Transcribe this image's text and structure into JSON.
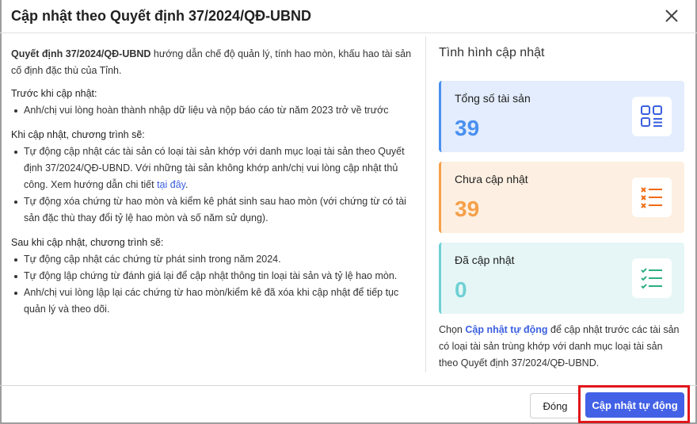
{
  "dialog": {
    "title": "Cập nhật theo Quyết định 37/2024/QĐ-UBND"
  },
  "intro": {
    "bold": "Quyết định 37/2024/QĐ-UBND",
    "rest": " hướng dẫn chế độ quản lý, tính hao mòn, khấu hao tài sản cố định đặc thù của Tỉnh."
  },
  "before": {
    "heading": "Trước khi cập nhật:",
    "items": [
      "Anh/chị vui lòng hoàn thành nhập dữ liệu và nộp báo cáo từ năm 2023 trở về trước"
    ]
  },
  "during": {
    "heading": "Khi cập nhật, chương trình sẽ:",
    "item1_text": "Tự động cập nhật các tài sản có loại tài sản khớp với danh mục loại tài sản theo Quyết định 37/2024/QĐ-UBND. Với những tài sản không khớp anh/chị vui lòng cập nhật thủ công. Xem hướng dẫn chi tiết ",
    "item1_link": "tại đây",
    "item1_end": ".",
    "item2": "Tự động xóa chứng từ hao mòn và kiểm kê phát sinh sau hao mòn (với chứng từ có tài sản đặc thù thay đổi tỷ lệ hao mòn và số năm sử dụng)."
  },
  "after": {
    "heading": "Sau khi cập nhật, chương trình sẽ:",
    "items": [
      "Tự động cập nhật các chứng từ phát sinh trong năm 2024.",
      "Tự động lập chứng từ đánh giá lại để cập nhật thông tin loại tài sản và tỷ lệ hao mòn.",
      "Anh/chị vui lòng lập lại các chứng từ hao mòn/kiểm kê đã xóa khi cập nhật để tiếp tục quản lý và theo dõi."
    ]
  },
  "status": {
    "title": "Tình hình cập nhật",
    "cards": [
      {
        "label": "Tổng số tài sản",
        "value": "39",
        "icon": "grid-list-icon",
        "color": "#4a90f0",
        "bg": "#e3edfd"
      },
      {
        "label": "Chưa cập nhật",
        "value": "39",
        "icon": "x-list-icon",
        "color": "#f5a04a",
        "bg": "#fdf0e2"
      },
      {
        "label": "Đã cập nhật",
        "value": "0",
        "icon": "check-list-icon",
        "color": "#6fd0d4",
        "bg": "#e6f6f6"
      }
    ],
    "note_pre": "Chọn ",
    "note_link": "Cập nhật tự động",
    "note_post": " để cập nhật trước các tài sản có loại tài sản trùng khớp với danh mục loại tài sản theo Quyết định 37/2024/QĐ-UBND."
  },
  "footer": {
    "close_label": "Đóng",
    "auto_label": "Cập nhật tự động"
  }
}
